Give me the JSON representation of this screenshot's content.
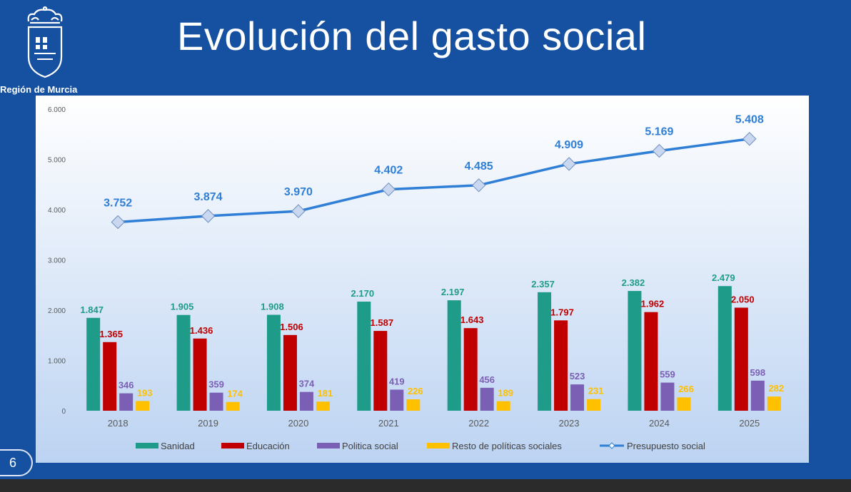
{
  "header": {
    "title": "Evolución del gasto social",
    "brand_text": "Región de Murcia"
  },
  "slide": {
    "number": "6"
  },
  "colors": {
    "background": "#1651a1",
    "sanidad": "#1f9b8a",
    "educacion": "#c00000",
    "politica_social": "#7b5fb5",
    "resto": "#ffc000",
    "presupuesto": "#2f7fd6"
  },
  "chart_data": {
    "type": "bar",
    "title": "",
    "xlabel": "",
    "ylabel": "",
    "ylim": [
      0,
      6000
    ],
    "yticks": [
      "0",
      "1.000",
      "2.000",
      "3.000",
      "4.000",
      "5.000",
      "6.000"
    ],
    "categories": [
      "2018",
      "2019",
      "2020",
      "2021",
      "2022",
      "2023",
      "2024",
      "2025"
    ],
    "series": [
      {
        "name": "Sanidad",
        "type": "bar",
        "values": [
          1847,
          1905,
          1908,
          2170,
          2197,
          2357,
          2382,
          2479
        ],
        "labels": [
          "1.847",
          "1.905",
          "1.908",
          "2.170",
          "2.197",
          "2.357",
          "2.382",
          "2.479"
        ]
      },
      {
        "name": "Educación",
        "type": "bar",
        "values": [
          1365,
          1436,
          1506,
          1587,
          1643,
          1797,
          1962,
          2050
        ],
        "labels": [
          "1.365",
          "1.436",
          "1.506",
          "1.587",
          "1.643",
          "1.797",
          "1.962",
          "2.050"
        ]
      },
      {
        "name": "Politica social",
        "type": "bar",
        "values": [
          346,
          359,
          374,
          419,
          456,
          523,
          559,
          598
        ],
        "labels": [
          "346",
          "359",
          "374",
          "419",
          "456",
          "523",
          "559",
          "598"
        ]
      },
      {
        "name": "Resto de políticas sociales",
        "type": "bar",
        "values": [
          193,
          174,
          181,
          226,
          189,
          231,
          266,
          282
        ],
        "labels": [
          "193",
          "174",
          "181",
          "226",
          "189",
          "231",
          "266",
          "282"
        ]
      },
      {
        "name": "Presupuesto social",
        "type": "line",
        "values": [
          3752,
          3874,
          3970,
          4402,
          4485,
          4909,
          5169,
          5408
        ],
        "labels": [
          "3.752",
          "3.874",
          "3.970",
          "4.402",
          "4.485",
          "4.909",
          "5.169",
          "5.408"
        ]
      }
    ],
    "grid": false,
    "legend_position": "bottom"
  }
}
